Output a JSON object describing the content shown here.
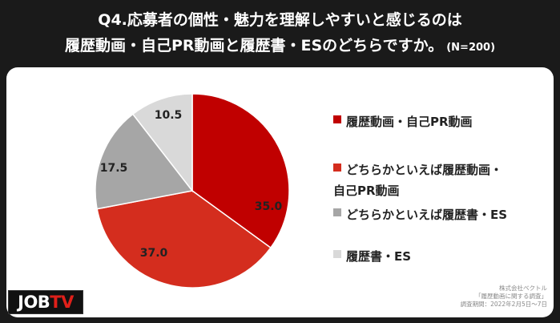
{
  "header": {
    "title_line1": "Q4.応募者の個性・魅力を理解しやすいと感じるのは",
    "title_line2": "履歴動画・自己PR動画と履歴書・ESのどちらですか。",
    "sample_note": "(N=200)"
  },
  "chart_data": {
    "type": "pie",
    "categories": [
      "履歴動画・自己PR動画",
      "どちらかといえば履歴動画・自己PR動画",
      "どちらかといえば履歴書・ES",
      "履歴書・ES"
    ],
    "values": [
      35.0,
      37.0,
      17.5,
      10.5
    ],
    "value_labels": [
      "35.0",
      "37.0",
      "17.5",
      "10.5"
    ],
    "colors": [
      "#c00000",
      "#d42d1e",
      "#a6a6a6",
      "#d9d9d9"
    ],
    "start_angle_deg": 0,
    "direction": "clockwise",
    "legend_position": "right"
  },
  "legend": {
    "items": [
      {
        "lines": [
          "履歴動画・自己PR動画"
        ],
        "color": "#c00000"
      },
      {
        "lines": [
          "どちらかといえば履歴動画・",
          "自己PR動画"
        ],
        "color": "#d42d1e"
      },
      {
        "lines": [
          "どちらかといえば履歴書・ES"
        ],
        "color": "#a6a6a6"
      },
      {
        "lines": [
          "履歴書・ES"
        ],
        "color": "#d9d9d9"
      }
    ]
  },
  "logo": {
    "part1": "JOB",
    "part2": "TV"
  },
  "credit": {
    "line1": "株式会社ベクトル",
    "line2": "「履歴動画に関する調査」",
    "line3": "調査期間：2022年2月5日〜7日"
  }
}
